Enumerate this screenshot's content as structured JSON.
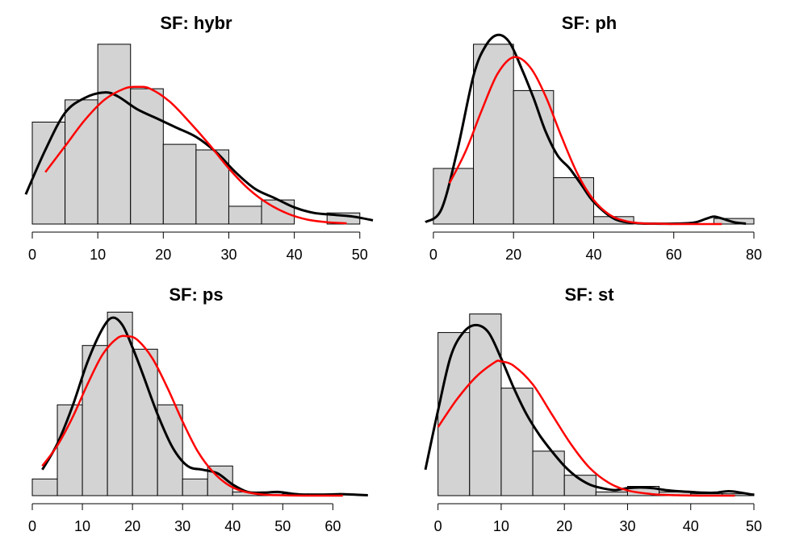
{
  "chart_data": [
    {
      "type": "histogram",
      "title": "SF: hybr",
      "bin_edges": [
        0,
        5,
        10,
        15,
        20,
        25,
        30,
        35,
        40,
        45,
        50
      ],
      "counts": [
        0.0275,
        0.0335,
        0.0485,
        0.0365,
        0.0215,
        0.02,
        0.0048,
        0.0065,
        0.0,
        0.003
      ],
      "xlim": [
        0,
        52
      ],
      "ylim": [
        0,
        0.05
      ],
      "xticks": [
        0,
        10,
        20,
        30,
        40,
        50
      ],
      "kde": {
        "color": "#000000",
        "x": [
          -1,
          2,
          5,
          8,
          11,
          13,
          16,
          19,
          22,
          25,
          28,
          31,
          34,
          37,
          40,
          43,
          46,
          49,
          52
        ],
        "y": [
          0.008,
          0.02,
          0.03,
          0.034,
          0.0355,
          0.0345,
          0.031,
          0.0285,
          0.026,
          0.0235,
          0.0195,
          0.014,
          0.0095,
          0.007,
          0.0045,
          0.003,
          0.0025,
          0.002,
          0.001
        ]
      },
      "normal_fit": {
        "color": "#ff0000",
        "x": [
          2,
          5,
          8,
          11,
          14,
          16,
          18,
          21,
          24,
          27,
          30,
          33,
          36,
          39,
          42,
          45,
          48
        ],
        "y": [
          0.014,
          0.021,
          0.028,
          0.0335,
          0.0365,
          0.037,
          0.0365,
          0.033,
          0.0275,
          0.0215,
          0.015,
          0.0095,
          0.0055,
          0.0028,
          0.0012,
          0.0005,
          0.0002
        ]
      }
    },
    {
      "type": "histogram",
      "title": "SF: ph",
      "bin_edges": [
        0,
        10,
        20,
        30,
        40,
        50,
        60,
        70,
        80
      ],
      "counts": [
        0.015,
        0.0485,
        0.036,
        0.0125,
        0.002,
        0.0,
        0.0,
        0.0015
      ],
      "xlim": [
        -2,
        80
      ],
      "ylim": [
        0,
        0.05
      ],
      "xticks": [
        0,
        20,
        40,
        60,
        80
      ],
      "kde": {
        "color": "#000000",
        "x": [
          -2,
          2,
          6,
          10,
          13,
          16,
          19,
          22,
          25,
          28,
          31,
          34,
          37,
          40,
          45,
          50,
          55,
          60,
          65,
          68,
          70,
          72,
          75,
          78
        ],
        "y": [
          0.0005,
          0.004,
          0.02,
          0.04,
          0.048,
          0.051,
          0.049,
          0.042,
          0.034,
          0.025,
          0.0185,
          0.015,
          0.0105,
          0.006,
          0.0015,
          0.0003,
          0.0001,
          0.0001,
          0.0004,
          0.0014,
          0.002,
          0.0015,
          0.0005,
          0.0001
        ]
      },
      "normal_fit": {
        "color": "#ff0000",
        "x": [
          4,
          8,
          12,
          16,
          20,
          24,
          28,
          32,
          36,
          40,
          44,
          48,
          52,
          56,
          60,
          66,
          72
        ],
        "y": [
          0.011,
          0.0195,
          0.0305,
          0.0405,
          0.045,
          0.0425,
          0.0345,
          0.0235,
          0.0135,
          0.0065,
          0.0025,
          0.0008,
          0.0002,
          0.0001,
          0.0,
          0.0,
          0.0
        ]
      }
    },
    {
      "type": "histogram",
      "title": "SF: ps",
      "bin_edges": [
        0,
        5,
        10,
        15,
        20,
        25,
        30,
        35,
        40,
        45,
        50,
        55,
        60
      ],
      "counts": [
        0.0045,
        0.0245,
        0.0405,
        0.0495,
        0.0395,
        0.0245,
        0.0045,
        0.008,
        0.001,
        0.001,
        0.0005,
        0.0005
      ],
      "xlim": [
        0,
        68
      ],
      "ylim": [
        0,
        0.05
      ],
      "xticks": [
        0,
        10,
        20,
        30,
        40,
        50,
        60
      ],
      "kde": {
        "color": "#000000",
        "x": [
          2,
          5,
          8,
          11,
          14,
          16,
          18,
          20,
          22,
          25,
          28,
          31,
          34,
          37,
          40,
          43,
          46,
          49,
          52,
          55,
          58,
          61,
          64,
          67
        ],
        "y": [
          0.007,
          0.014,
          0.024,
          0.036,
          0.045,
          0.048,
          0.046,
          0.04,
          0.033,
          0.022,
          0.013,
          0.008,
          0.007,
          0.006,
          0.003,
          0.001,
          0.0008,
          0.001,
          0.0005,
          0.0002,
          0.0002,
          0.0004,
          0.0003,
          0.0001
        ]
      },
      "normal_fit": {
        "color": "#ff0000",
        "x": [
          2,
          5,
          8,
          11,
          14,
          17,
          19,
          21,
          24,
          27,
          30,
          33,
          36,
          39,
          42,
          46,
          50,
          55,
          62
        ],
        "y": [
          0.008,
          0.0135,
          0.021,
          0.03,
          0.038,
          0.0425,
          0.043,
          0.042,
          0.037,
          0.029,
          0.02,
          0.012,
          0.0065,
          0.003,
          0.0012,
          0.0003,
          0.0001,
          0.0,
          0.0
        ]
      }
    },
    {
      "type": "histogram",
      "title": "SF: st",
      "bin_edges": [
        0,
        5,
        10,
        15,
        20,
        25,
        30,
        35,
        40,
        45,
        50
      ],
      "counts": [
        0.044,
        0.049,
        0.029,
        0.012,
        0.0055,
        0.001,
        0.0025,
        0.001,
        0.0005,
        0.0005
      ],
      "xlim": [
        -2,
        50
      ],
      "ylim": [
        0,
        0.05
      ],
      "xticks": [
        0,
        10,
        20,
        30,
        40,
        50
      ],
      "kde": {
        "color": "#000000",
        "x": [
          -2,
          0,
          2,
          4,
          6,
          8,
          10,
          12,
          14,
          16,
          18,
          20,
          22,
          24,
          26,
          28,
          30,
          32,
          34,
          36,
          38,
          40,
          42,
          44,
          46,
          48,
          50
        ],
        "y": [
          0.007,
          0.023,
          0.0375,
          0.044,
          0.046,
          0.044,
          0.037,
          0.029,
          0.022,
          0.0165,
          0.012,
          0.008,
          0.005,
          0.003,
          0.002,
          0.0015,
          0.002,
          0.0022,
          0.002,
          0.0015,
          0.0012,
          0.001,
          0.0008,
          0.0008,
          0.0012,
          0.0008,
          0.0002
        ]
      },
      "normal_fit": {
        "color": "#ff0000",
        "x": [
          0,
          3,
          6,
          9,
          10,
          12,
          15,
          18,
          21,
          24,
          27,
          30,
          34,
          38,
          42,
          47
        ],
        "y": [
          0.0185,
          0.026,
          0.032,
          0.036,
          0.0362,
          0.035,
          0.03,
          0.022,
          0.014,
          0.0075,
          0.0035,
          0.0014,
          0.0004,
          0.0001,
          0.0,
          0.0
        ]
      }
    }
  ]
}
